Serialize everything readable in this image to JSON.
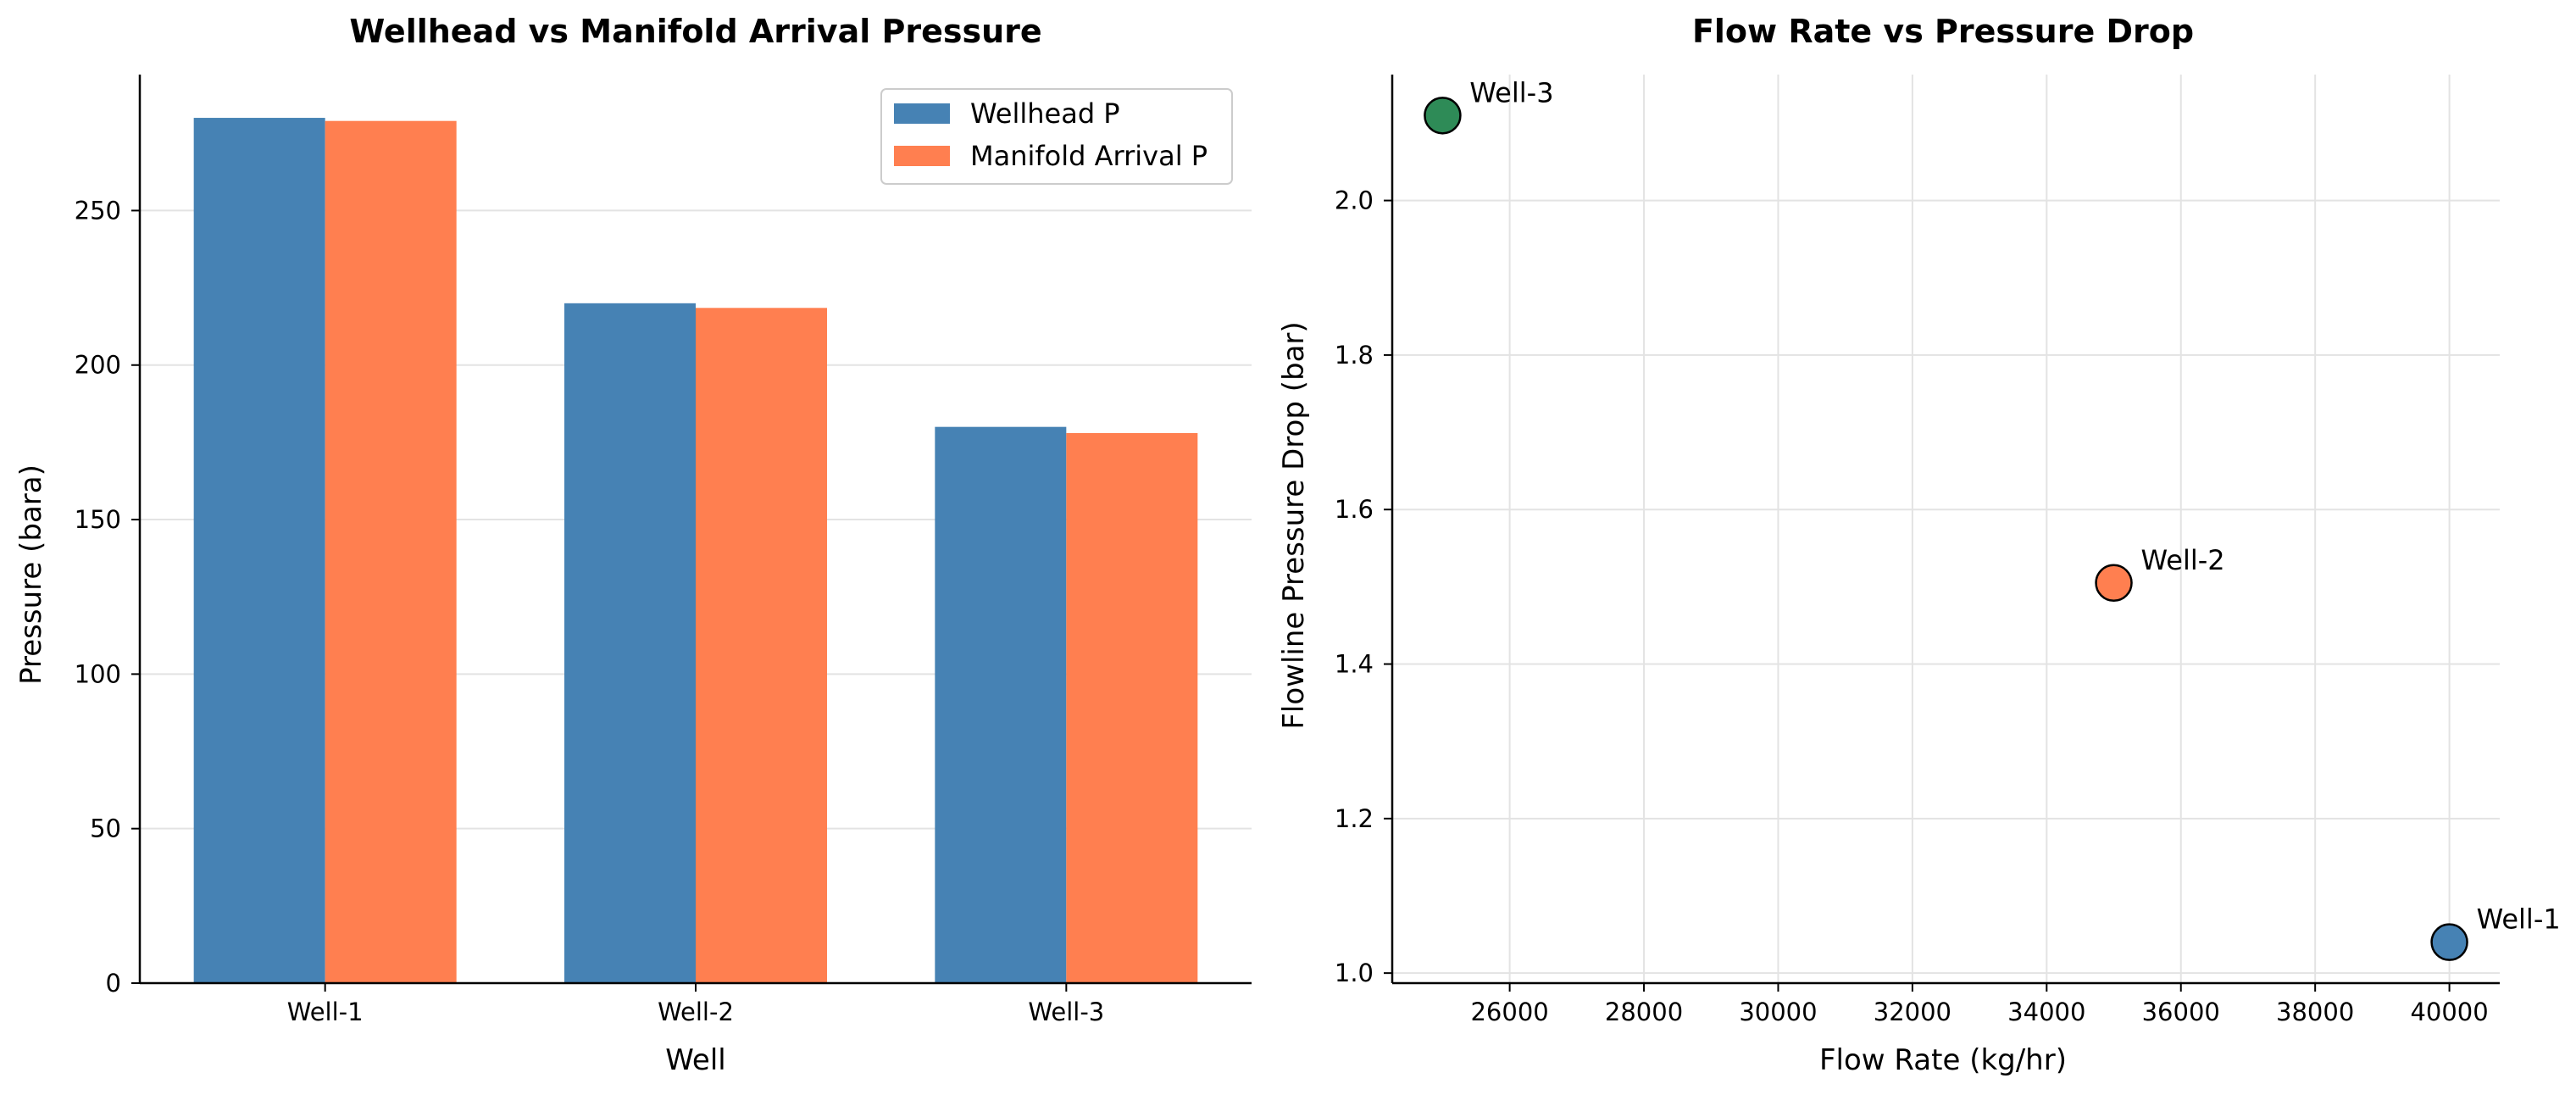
{
  "colors": {
    "wellhead": "#4682b4",
    "manifold": "#ff7f50",
    "well_1": "#4682b4",
    "well_2": "#ff7f50",
    "well_3": "#2e8b57",
    "grid": "#e3e3e3",
    "axis": "#000000"
  },
  "chart_data": [
    {
      "type": "bar",
      "title": "Wellhead vs Manifold Arrival Pressure",
      "xlabel": "Well",
      "ylabel": "Pressure (bara)",
      "categories": [
        "Well-1",
        "Well-2",
        "Well-3"
      ],
      "series": [
        {
          "name": "Wellhead P",
          "values": [
            280,
            220,
            180
          ]
        },
        {
          "name": "Manifold Arrival P",
          "values": [
            279,
            218.5,
            178
          ]
        }
      ],
      "ylim": [
        0,
        294
      ],
      "yticks": [
        0,
        50,
        100,
        150,
        200,
        250
      ],
      "grid": "y",
      "legend": "top-right"
    },
    {
      "type": "scatter",
      "title": "Flow Rate vs Pressure Drop",
      "xlabel": "Flow Rate (kg/hr)",
      "ylabel": "Flowline Pressure Drop (bar)",
      "points": [
        {
          "label": "Well-1",
          "x": 40000,
          "y": 1.04
        },
        {
          "label": "Well-2",
          "x": 35000,
          "y": 1.505
        },
        {
          "label": "Well-3",
          "x": 25000,
          "y": 2.11
        }
      ],
      "xlim": [
        24250,
        40750
      ],
      "ylim": [
        0.987,
        2.163
      ],
      "xticks": [
        26000,
        28000,
        30000,
        32000,
        34000,
        36000,
        38000,
        40000
      ],
      "yticks": [
        1.0,
        1.2,
        1.4,
        1.6,
        1.8,
        2.0
      ],
      "grid": "both"
    }
  ]
}
